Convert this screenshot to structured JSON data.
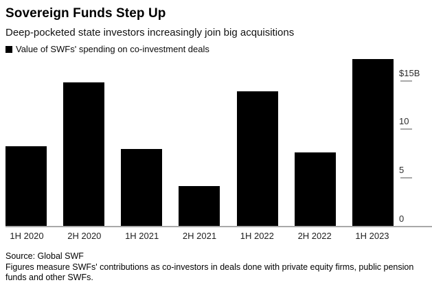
{
  "header": {
    "title": "Sovereign Funds Step Up",
    "subtitle": "Deep-pocketed state investors increasingly join big acquisitions",
    "legend": {
      "label": "Value of SWFs' spending on co-investment deals",
      "marker_color": "#000000"
    }
  },
  "chart_data": {
    "type": "bar",
    "title": "Sovereign Funds Step Up",
    "subtitle": "Deep-pocketed state investors increasingly join big acquisitions",
    "series_name": "Value of SWFs' spending on co-investment deals",
    "unit": "USD billions",
    "categories": [
      "1H 2020",
      "2H 2020",
      "1H 2021",
      "2H 2021",
      "1H 2022",
      "2H 2022",
      "1H 2023"
    ],
    "values": [
      8.3,
      14.8,
      8.0,
      4.2,
      13.9,
      7.6,
      17.2
    ],
    "yticks": [
      {
        "value": 15,
        "label": "$15B"
      },
      {
        "value": 10,
        "label": "10"
      },
      {
        "value": 5,
        "label": "5"
      },
      {
        "value": 0,
        "label": "0"
      }
    ],
    "ylim": [
      0,
      17.3
    ],
    "xlabel": "",
    "ylabel": "",
    "grid": false,
    "legend_position": "top-left",
    "bar_color": "#000000",
    "axis_color": "#a8a8a8",
    "background_color": "#ffffff"
  },
  "footer": {
    "source": "Source: Global SWF",
    "note": "Figures measure SWFs' contributions as co-investors in deals done with private equity firms, public pension funds and other SWFs."
  }
}
